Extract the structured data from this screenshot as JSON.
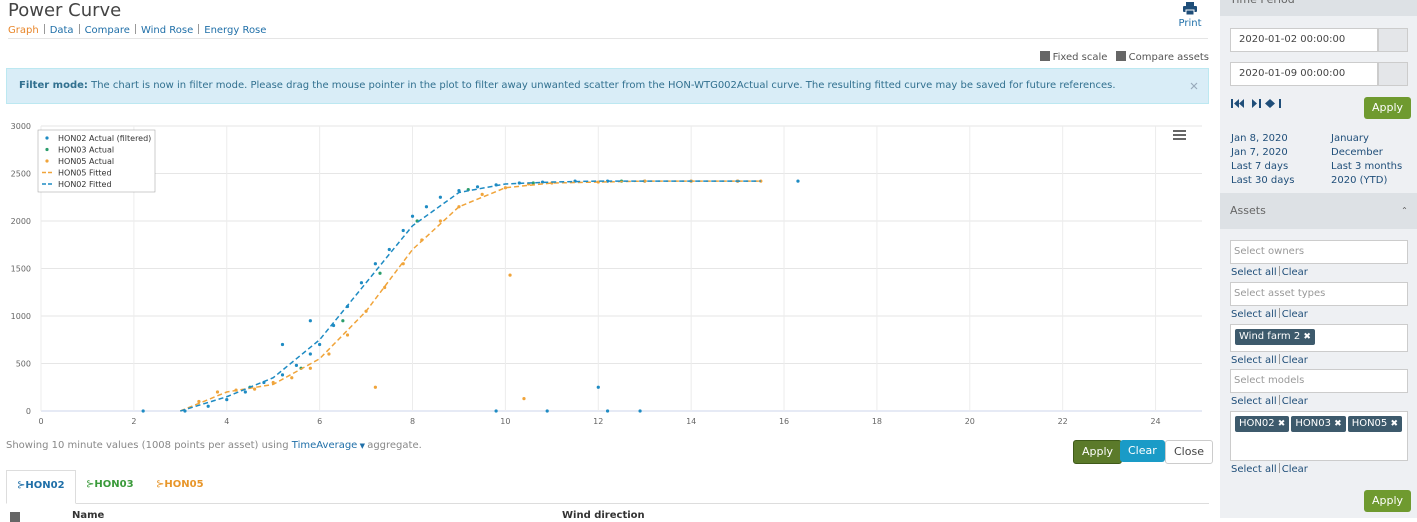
{
  "header": {
    "title": "Power Curve",
    "print": "Print",
    "nav": [
      "Graph",
      "Data",
      "Compare",
      "Wind Rose",
      "Energy Rose"
    ]
  },
  "options": [
    "Fixed scale",
    "Compare assets"
  ],
  "filter": {
    "label": "Filter mode:",
    "text": "The chart is now in filter mode. Please drag the mouse pointer in the plot to filter away unwanted scatter from the HON-WTG002Actual curve. The resulting fitted curve may be saved for future references."
  },
  "chart_data": {
    "type": "scatter",
    "xlim": [
      0,
      25
    ],
    "xticks": [
      0,
      2,
      4,
      6,
      8,
      10,
      12,
      14,
      16,
      18,
      20,
      22,
      24
    ],
    "ylim": [
      0,
      3000
    ],
    "yticks": [
      0,
      500,
      1000,
      1500,
      2000,
      2500,
      3000
    ],
    "grid": true,
    "legend": "top-left",
    "series": [
      {
        "name": "HON02 Actual (filtered)",
        "color": "#1e8bc3",
        "mode": "markers",
        "x": [
          2.2,
          3.1,
          3.6,
          4.0,
          4.4,
          4.8,
          5.2,
          5.5,
          5.8,
          6.0,
          6.3,
          6.6,
          6.9,
          7.2,
          7.5,
          7.8,
          8.0,
          8.3,
          8.6,
          9.0,
          9.4,
          9.8,
          10.3,
          10.8,
          11.5,
          12.2,
          13.0,
          14.0,
          15.0,
          16.3,
          9.8,
          10.9,
          12.2,
          12.9,
          12.0,
          5.2,
          5.8
        ],
        "values": [
          0,
          0,
          50,
          120,
          200,
          300,
          380,
          480,
          600,
          700,
          900,
          1100,
          1350,
          1550,
          1700,
          1900,
          2050,
          2150,
          2250,
          2320,
          2360,
          2380,
          2400,
          2410,
          2420,
          2420,
          2420,
          2420,
          2420,
          2420,
          0,
          0,
          0,
          0,
          250,
          700,
          950
        ]
      },
      {
        "name": "HON03 Actual",
        "color": "#2a9d6b",
        "mode": "markers",
        "x": [
          4.5,
          5.6,
          6.5,
          7.3,
          8.1,
          9.2,
          10.6,
          12.5
        ],
        "values": [
          250,
          450,
          950,
          1450,
          2000,
          2330,
          2400,
          2420
        ]
      },
      {
        "name": "HON05 Actual",
        "color": "#f0a43a",
        "mode": "markers",
        "x": [
          3.4,
          3.8,
          4.2,
          4.6,
          5.0,
          5.4,
          5.8,
          6.2,
          6.6,
          7.0,
          7.4,
          7.8,
          8.2,
          8.6,
          9.0,
          9.5,
          10.0,
          10.5,
          11.0,
          12.0,
          13.0,
          14.0,
          15.0,
          15.5,
          10.1,
          10.4,
          7.2
        ],
        "values": [
          100,
          200,
          220,
          230,
          300,
          350,
          450,
          600,
          800,
          1050,
          1300,
          1550,
          1800,
          2000,
          2150,
          2280,
          2350,
          2390,
          2400,
          2410,
          2420,
          2420,
          2420,
          2420,
          1430,
          130,
          250
        ]
      },
      {
        "name": "HON05 Fitted",
        "color": "#f0a43a",
        "mode": "dashed-line",
        "x": [
          3,
          4,
          5,
          6,
          7,
          8,
          9,
          10,
          11,
          12,
          13,
          14,
          15.5
        ],
        "values": [
          0,
          200,
          280,
          550,
          1050,
          1700,
          2150,
          2350,
          2400,
          2410,
          2420,
          2420,
          2420
        ]
      },
      {
        "name": "HON02 Fitted",
        "color": "#1e8bc3",
        "mode": "dashed-line",
        "x": [
          3,
          4,
          5,
          6,
          7,
          8,
          9,
          10,
          11,
          12,
          14,
          15.5
        ],
        "values": [
          0,
          150,
          350,
          750,
          1350,
          1950,
          2300,
          2390,
          2410,
          2420,
          2420,
          2420
        ]
      }
    ]
  },
  "footer": {
    "prefix": "Showing 10 minute values (1008 points per asset) using",
    "aggregate": "TimeAverage",
    "suffix": "aggregate."
  },
  "buttons": [
    "Apply",
    "Clear",
    "Close"
  ],
  "tabs": [
    "HON02",
    "HON03",
    "HON05"
  ],
  "table": {
    "columns": [
      "Name",
      "Wind direction"
    ]
  },
  "sidebar": {
    "time_title": "Time Period",
    "from": "2020-01-02 00:00:00",
    "to": "2020-01-09 00:00:00",
    "apply": "Apply",
    "quick": [
      [
        "Jan 8, 2020",
        "January"
      ],
      [
        "Jan 7, 2020",
        "December"
      ],
      [
        "Last 7 days",
        "Last 3 months"
      ],
      [
        "Last 30 days",
        "2020 (YTD)"
      ]
    ],
    "assets_title": "Assets",
    "filters": [
      {
        "placeholder": "Select owners",
        "tags": []
      },
      {
        "placeholder": "Select asset types",
        "tags": []
      },
      {
        "placeholder": "",
        "tags": [
          "Wind farm 2"
        ]
      },
      {
        "placeholder": "Select models",
        "tags": []
      },
      {
        "placeholder": "",
        "tags": [
          "HON02",
          "HON03",
          "HON05"
        ]
      }
    ],
    "select_all": "Select all",
    "clear": "Clear",
    "apply2": "Apply"
  }
}
